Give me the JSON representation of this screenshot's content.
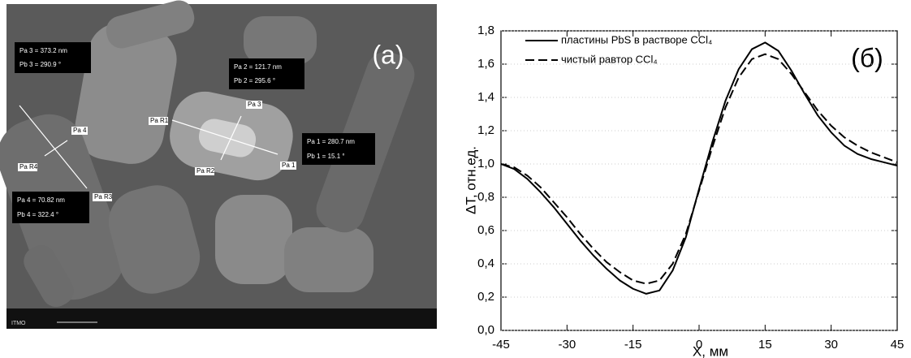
{
  "image": {
    "label": "(a)",
    "annotations": [
      "Pa 3 = 373.2 nm",
      "Pb 3 = 290.9 °",
      "Pa 2 = 121.7 nm",
      "Pb 2 = 295.6 °",
      "Pa 1 = 280.7 nm",
      "Pb 1 = 15.1 °",
      "Pa 4 = 70.82 nm",
      "Pb 4 = 322.4 °"
    ],
    "markers": [
      "Pa R1",
      "Pa 3",
      "Pa R2",
      "Pa 1",
      "Pa 4",
      "Pa R4",
      "Pa R3"
    ],
    "footer": "ITMO"
  },
  "chart_data": {
    "type": "line",
    "panel_label": "(б)",
    "x_label": "X, мм",
    "y_label": "ΔT, отн.ед.",
    "x": [
      -45,
      -42,
      -39,
      -36,
      -33,
      -30,
      -27,
      -24,
      -21,
      -18,
      -15,
      -12,
      -9,
      -6,
      -3,
      0,
      3,
      6,
      9,
      12,
      15,
      18,
      21,
      24,
      27,
      30,
      33,
      36,
      39,
      42,
      45
    ],
    "series": [
      {
        "name": "пластины PbS в растворе CCl₄",
        "color": "#000000",
        "style": "solid",
        "values": [
          1.0,
          0.97,
          0.91,
          0.83,
          0.74,
          0.64,
          0.54,
          0.45,
          0.37,
          0.3,
          0.25,
          0.22,
          0.24,
          0.36,
          0.56,
          0.85,
          1.13,
          1.38,
          1.57,
          1.69,
          1.73,
          1.68,
          1.56,
          1.42,
          1.29,
          1.19,
          1.11,
          1.06,
          1.03,
          1.01,
          0.99
        ]
      },
      {
        "name": "чистый равтор CCl₄",
        "color": "#000000",
        "style": "dash",
        "values": [
          1.0,
          0.98,
          0.93,
          0.86,
          0.77,
          0.68,
          0.58,
          0.49,
          0.41,
          0.35,
          0.3,
          0.28,
          0.3,
          0.4,
          0.58,
          0.84,
          1.1,
          1.34,
          1.52,
          1.63,
          1.66,
          1.63,
          1.54,
          1.43,
          1.32,
          1.23,
          1.16,
          1.11,
          1.07,
          1.04,
          1.01
        ]
      }
    ],
    "xlim": [
      -45,
      45
    ],
    "xticks": [
      -45,
      -30,
      -15,
      0,
      15,
      30,
      45
    ],
    "ylim": [
      0,
      1.8
    ],
    "yticks": [
      {
        "value": 0,
        "label": "0,0"
      },
      {
        "value": 0.2,
        "label": "0,2"
      },
      {
        "value": 0.4,
        "label": "0,4"
      },
      {
        "value": 0.6,
        "label": "0,6"
      },
      {
        "value": 0.8,
        "label": "0,8"
      },
      {
        "value": 1.0,
        "label": "1,0"
      },
      {
        "value": 1.2,
        "label": "1,2"
      },
      {
        "value": 1.4,
        "label": "1,4"
      },
      {
        "value": 1.6,
        "label": "1,6"
      },
      {
        "value": 1.8,
        "label": "1,8"
      }
    ],
    "grid": true,
    "legend": "upper left"
  }
}
